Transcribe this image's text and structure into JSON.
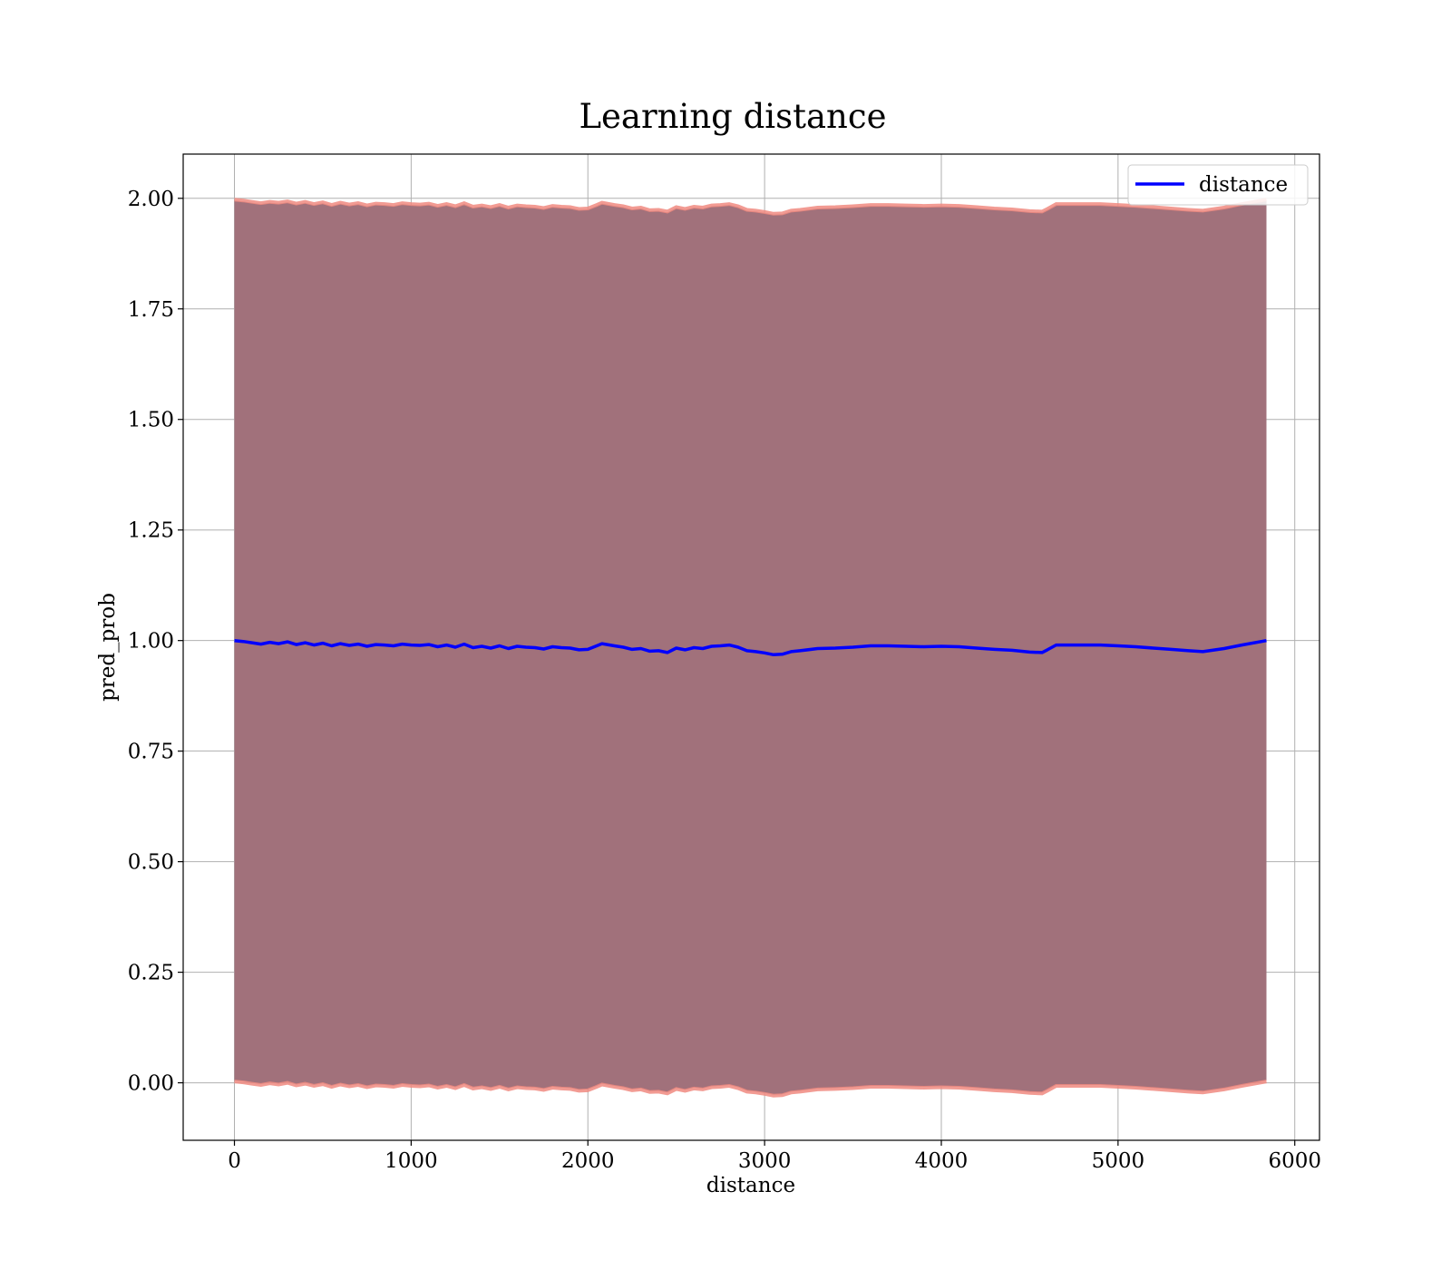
{
  "chart_data": {
    "type": "line",
    "title": "Learning distance",
    "xlabel": "distance",
    "ylabel": "pred_prob",
    "xlim": [
      -290,
      6140
    ],
    "ylim": [
      -0.13,
      2.1
    ],
    "xticks": [
      0,
      1000,
      2000,
      3000,
      4000,
      5000,
      6000
    ],
    "yticks": [
      0.0,
      0.25,
      0.5,
      0.75,
      1.0,
      1.25,
      1.5,
      1.75,
      2.0
    ],
    "xtick_labels": [
      "0",
      "1000",
      "2000",
      "3000",
      "4000",
      "5000",
      "6000"
    ],
    "ytick_labels": [
      "0.00",
      "0.25",
      "0.50",
      "0.75",
      "1.00",
      "1.25",
      "1.50",
      "1.75",
      "2.00"
    ],
    "grid": true,
    "legend": {
      "placement": "top-right",
      "entries": [
        "distance"
      ]
    },
    "colors": {
      "line": "#0000ff",
      "band_fill": "#a1717b",
      "band_edge": "#f08a80",
      "grid": "#b0b0b0"
    },
    "series": [
      {
        "name": "distance",
        "x": [
          0,
          50,
          100,
          150,
          200,
          250,
          300,
          350,
          400,
          450,
          500,
          550,
          600,
          650,
          700,
          750,
          800,
          850,
          900,
          950,
          1000,
          1050,
          1100,
          1150,
          1200,
          1250,
          1300,
          1350,
          1400,
          1450,
          1500,
          1550,
          1600,
          1650,
          1700,
          1750,
          1800,
          1850,
          1900,
          1950,
          2000,
          2050,
          2080,
          2150,
          2200,
          2250,
          2300,
          2350,
          2400,
          2450,
          2500,
          2550,
          2600,
          2650,
          2700,
          2750,
          2800,
          2850,
          2900,
          2950,
          3000,
          3050,
          3100,
          3150,
          3200,
          3300,
          3400,
          3500,
          3600,
          3700,
          3800,
          3900,
          4000,
          4100,
          4200,
          4300,
          4400,
          4500,
          4570,
          4600,
          4650,
          4700,
          4800,
          4900,
          5000,
          5100,
          5200,
          5300,
          5400,
          5480,
          5600,
          5700,
          5840
        ],
        "y": [
          1.0,
          0.998,
          0.995,
          0.992,
          0.996,
          0.993,
          0.997,
          0.991,
          0.995,
          0.99,
          0.994,
          0.988,
          0.993,
          0.989,
          0.992,
          0.987,
          0.991,
          0.99,
          0.988,
          0.992,
          0.99,
          0.989,
          0.991,
          0.986,
          0.99,
          0.985,
          0.992,
          0.984,
          0.987,
          0.983,
          0.988,
          0.982,
          0.987,
          0.985,
          0.984,
          0.981,
          0.986,
          0.984,
          0.983,
          0.979,
          0.98,
          0.988,
          0.993,
          0.988,
          0.985,
          0.98,
          0.982,
          0.976,
          0.977,
          0.973,
          0.983,
          0.979,
          0.984,
          0.982,
          0.987,
          0.988,
          0.99,
          0.985,
          0.977,
          0.975,
          0.972,
          0.968,
          0.969,
          0.975,
          0.977,
          0.982,
          0.983,
          0.985,
          0.988,
          0.988,
          0.987,
          0.986,
          0.987,
          0.986,
          0.983,
          0.98,
          0.978,
          0.974,
          0.973,
          0.979,
          0.99,
          0.99,
          0.99,
          0.99,
          0.988,
          0.986,
          0.983,
          0.98,
          0.977,
          0.975,
          0.982,
          0.99,
          1.0
        ]
      }
    ],
    "band": {
      "upper": [
        1.995,
        1.993,
        1.99,
        1.987,
        1.99,
        1.988,
        1.991,
        1.986,
        1.99,
        1.985,
        1.989,
        1.983,
        1.988,
        1.984,
        1.987,
        1.982,
        1.986,
        1.985,
        1.983,
        1.987,
        1.985,
        1.984,
        1.986,
        1.981,
        1.985,
        1.98,
        1.987,
        1.979,
        1.982,
        1.978,
        1.983,
        1.977,
        1.982,
        1.98,
        1.979,
        1.976,
        1.981,
        1.979,
        1.978,
        1.974,
        1.975,
        1.983,
        1.988,
        1.983,
        1.98,
        1.975,
        1.977,
        1.971,
        1.972,
        1.968,
        1.978,
        1.974,
        1.979,
        1.977,
        1.982,
        1.983,
        1.985,
        1.98,
        1.972,
        1.97,
        1.967,
        1.963,
        1.964,
        1.97,
        1.972,
        1.977,
        1.978,
        1.98,
        1.983,
        1.983,
        1.982,
        1.981,
        1.982,
        1.981,
        1.978,
        1.975,
        1.973,
        1.969,
        1.968,
        1.974,
        1.985,
        1.985,
        1.985,
        1.985,
        1.983,
        1.981,
        1.978,
        1.975,
        1.972,
        1.97,
        1.977,
        1.985,
        1.995
      ],
      "lower": [
        0.005,
        0.003,
        0.0,
        -0.003,
        0.001,
        -0.002,
        0.002,
        -0.004,
        0.0,
        -0.005,
        -0.001,
        -0.007,
        -0.002,
        -0.006,
        -0.003,
        -0.008,
        -0.004,
        -0.005,
        -0.007,
        -0.003,
        -0.005,
        -0.006,
        -0.004,
        -0.009,
        -0.005,
        -0.01,
        -0.003,
        -0.011,
        -0.008,
        -0.012,
        -0.007,
        -0.013,
        -0.008,
        -0.01,
        -0.011,
        -0.014,
        -0.009,
        -0.011,
        -0.012,
        -0.016,
        -0.015,
        -0.007,
        -0.002,
        -0.007,
        -0.01,
        -0.015,
        -0.013,
        -0.019,
        -0.018,
        -0.022,
        -0.012,
        -0.016,
        -0.011,
        -0.013,
        -0.008,
        -0.007,
        -0.005,
        -0.01,
        -0.018,
        -0.02,
        -0.023,
        -0.027,
        -0.026,
        -0.02,
        -0.018,
        -0.013,
        -0.012,
        -0.01,
        -0.007,
        -0.007,
        -0.008,
        -0.009,
        -0.008,
        -0.009,
        -0.012,
        -0.015,
        -0.017,
        -0.021,
        -0.022,
        -0.016,
        -0.005,
        -0.005,
        -0.005,
        -0.005,
        -0.007,
        -0.009,
        -0.012,
        -0.015,
        -0.018,
        -0.02,
        -0.013,
        -0.005,
        0.005
      ]
    }
  }
}
